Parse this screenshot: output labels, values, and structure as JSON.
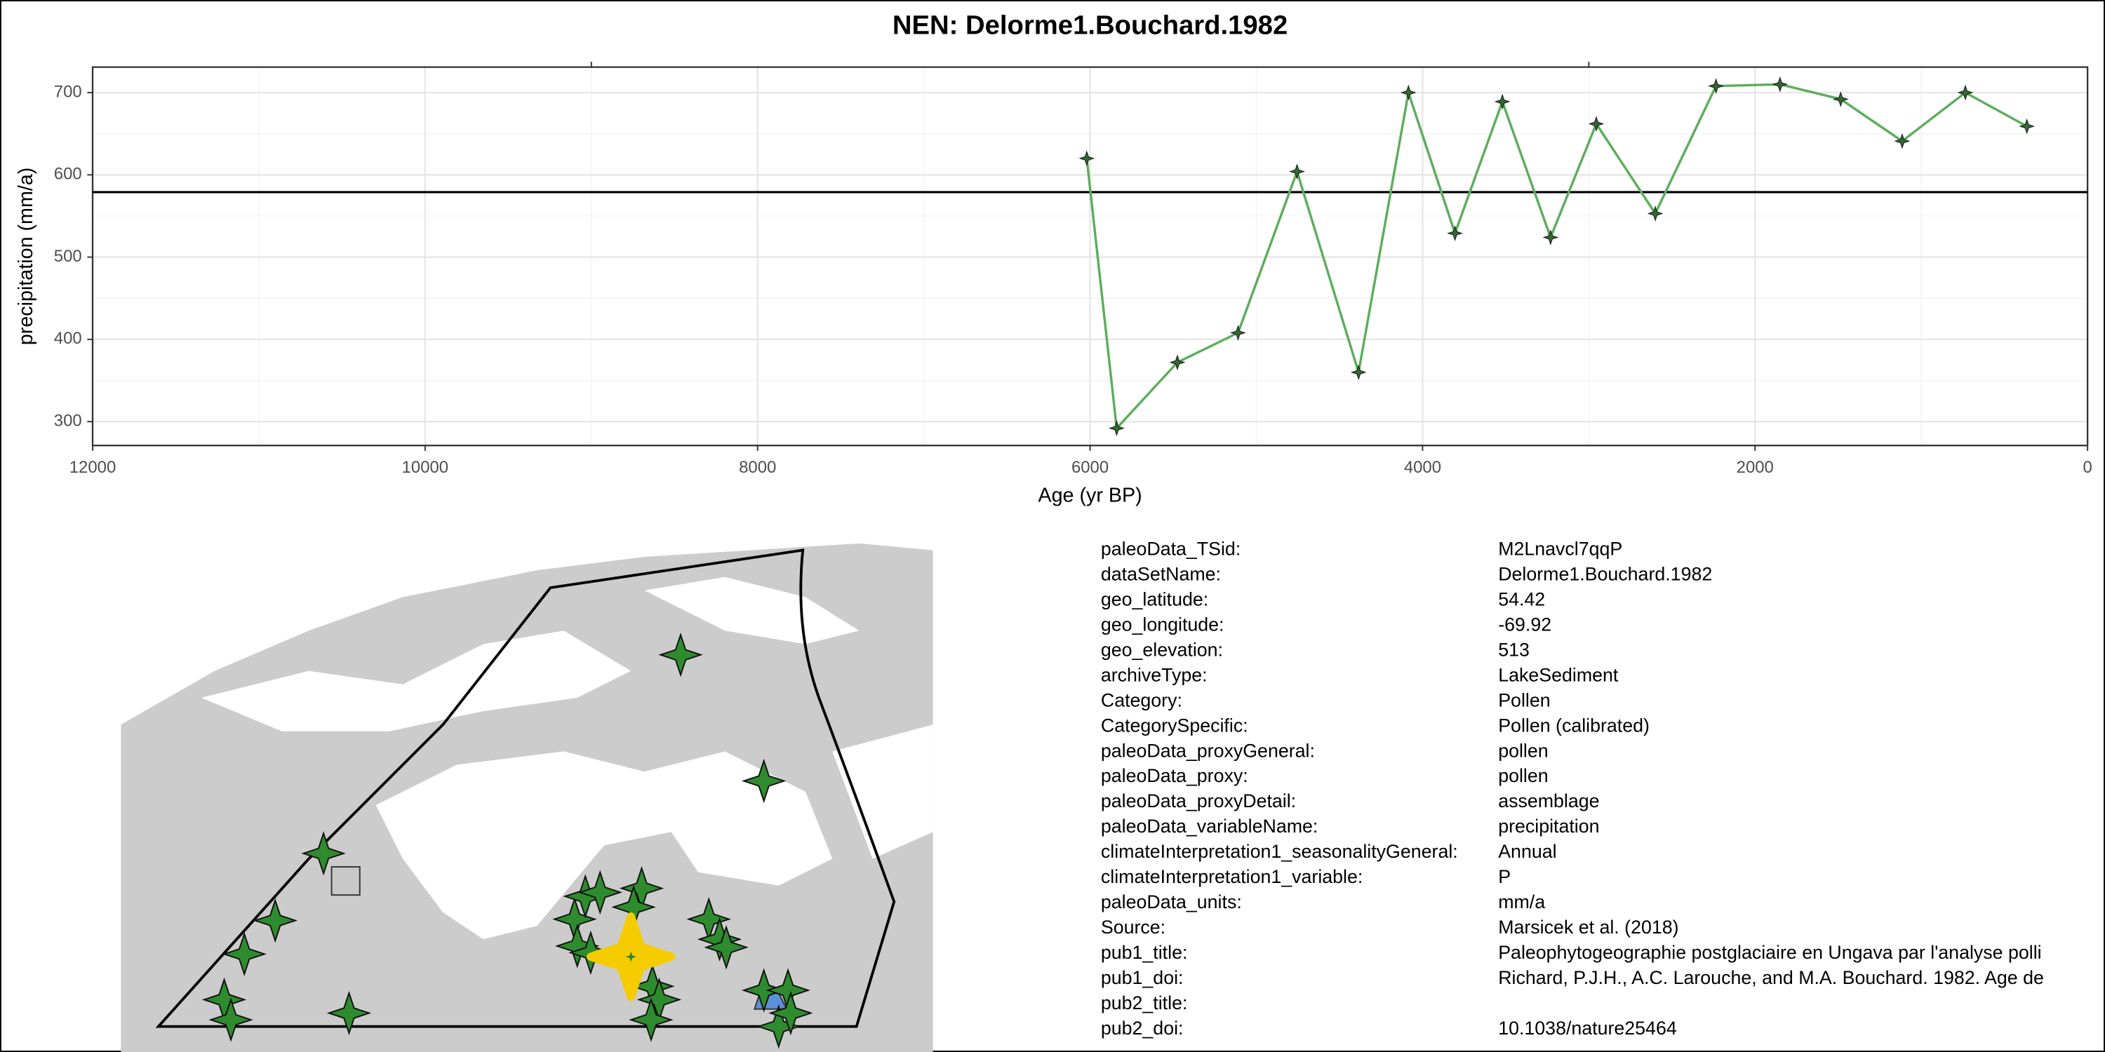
{
  "chart_data": {
    "type": "line",
    "title": "NEN: Delorme1.Bouchard.1982",
    "x_label": "Age (yr BP)",
    "y_label": "precipitation (mm/a)",
    "x": [
      6020,
      5840,
      5475,
      5110,
      4755,
      4385,
      4085,
      3805,
      3520,
      3230,
      2955,
      2600,
      2235,
      1850,
      1485,
      1115,
      735,
      365
    ],
    "series": [
      {
        "name": "precipitation",
        "color": "#5cae5c",
        "marker_color": "#2f6b2f",
        "values": [
          620,
          292,
          372,
          408,
          604,
          360,
          700,
          529,
          689,
          524,
          662,
          553,
          708,
          710,
          692,
          641,
          700,
          659
        ]
      }
    ],
    "reference_line": 579,
    "xlim": [
      12000,
      0
    ],
    "xticks": [
      12000,
      10000,
      8000,
      6000,
      4000,
      2000,
      0
    ],
    "x2ticks": [
      9000,
      3000
    ],
    "ylim": [
      271,
      731
    ],
    "yticks": [
      300,
      400,
      500,
      600,
      700
    ],
    "grid": true
  },
  "metadata": {
    "rows": [
      [
        "paleoData_TSid:",
        "M2Lnavcl7qqP"
      ],
      [
        "dataSetName:",
        "Delorme1.Bouchard.1982"
      ],
      [
        "geo_latitude:",
        "54.42"
      ],
      [
        "geo_longitude:",
        "-69.92"
      ],
      [
        "geo_elevation:",
        "513"
      ],
      [
        "archiveType:",
        "LakeSediment"
      ],
      [
        "Category:",
        "Pollen"
      ],
      [
        "CategorySpecific:",
        "Pollen (calibrated)"
      ],
      [
        "paleoData_proxyGeneral:",
        "pollen"
      ],
      [
        "paleoData_proxy:",
        "pollen"
      ],
      [
        "paleoData_proxyDetail:",
        "assemblage"
      ],
      [
        "paleoData_variableName:",
        "precipitation"
      ],
      [
        "climateInterpretation1_seasonalityGeneral:",
        "Annual"
      ],
      [
        "climateInterpretation1_variable:",
        "P"
      ],
      [
        "paleoData_units:",
        "mm/a"
      ],
      [
        "Source:",
        "Marsicek et al. (2018)"
      ],
      [
        "pub1_title:",
        "Paleophytogeographie postglaciaire en Ungava par l'analyse polli"
      ],
      [
        "pub1_doi:",
        "Richard, P.J.H., A.C. Larouche, and M.A. Bouchard. 1982. Age de"
      ],
      [
        "pub2_title:"
      ],
      [
        "pub2_doi:",
        "10.1038/nature25464"
      ]
    ]
  }
}
